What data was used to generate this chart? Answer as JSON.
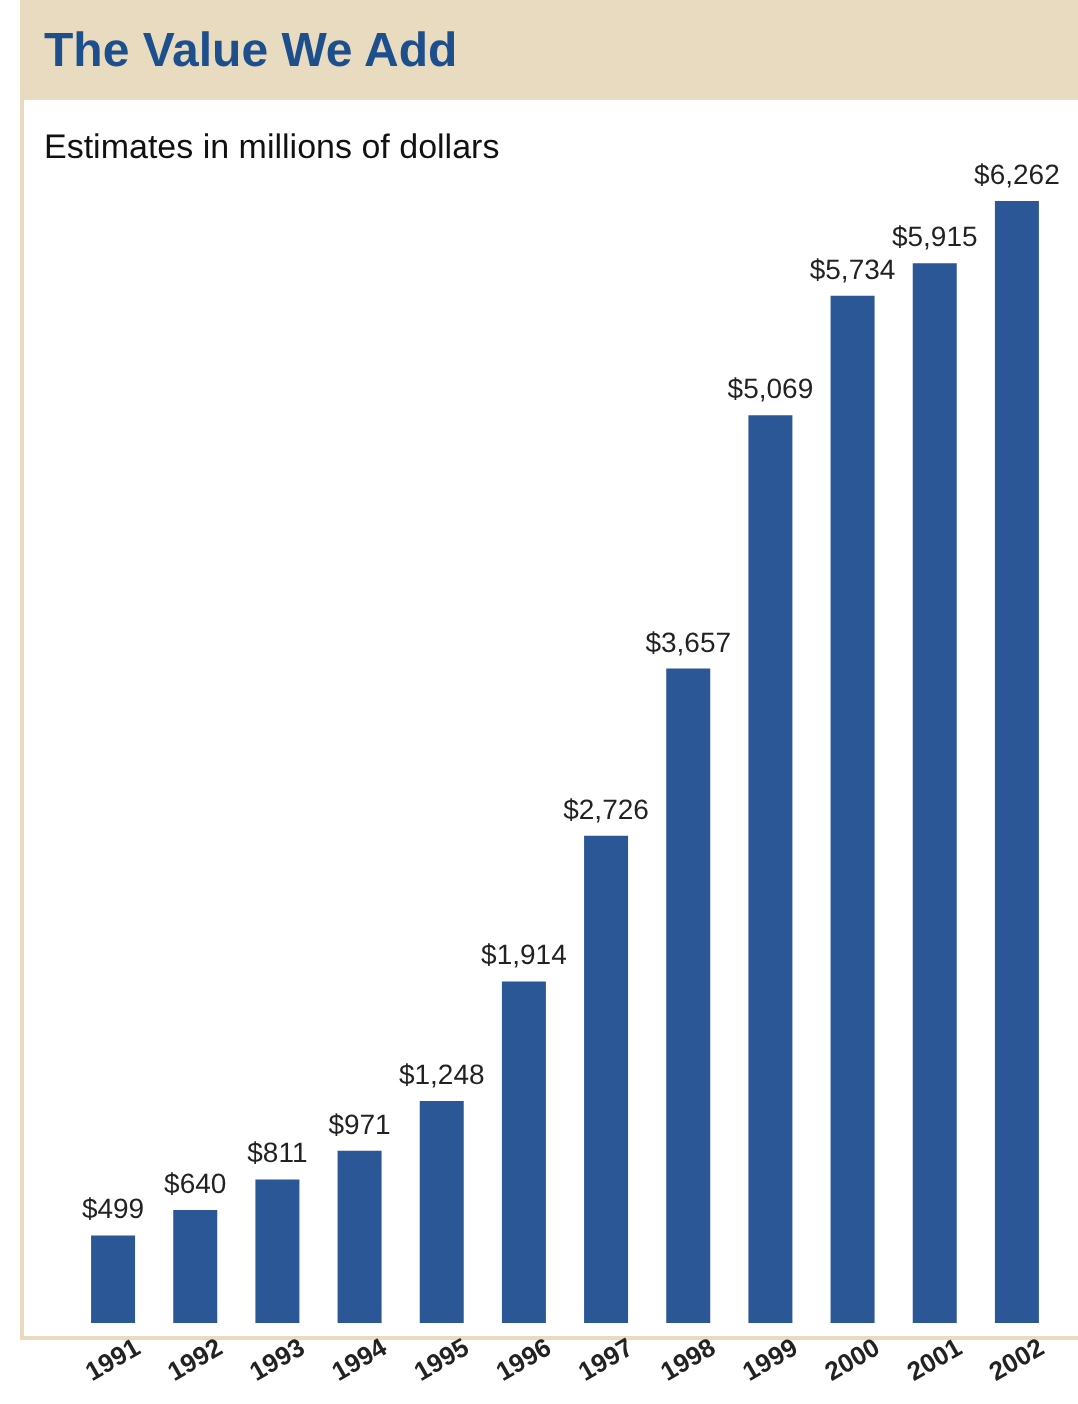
{
  "chart_data": {
    "type": "bar",
    "title": "The Value We Add",
    "subtitle": "Estimates in millions of dollars",
    "categories": [
      "1991",
      "1992",
      "1993",
      "1994",
      "1995",
      "1996",
      "1997",
      "1998",
      "1999",
      "2000",
      "2001",
      "2002"
    ],
    "values": [
      499,
      640,
      811,
      971,
      1248,
      1914,
      2726,
      3657,
      5069,
      5734,
      5915,
      6262
    ],
    "value_labels": [
      "$499",
      "$640",
      "$811",
      "$971",
      "$1,248",
      "$1,914",
      "$2,726",
      "$3,657",
      "$5,069",
      "$5,734",
      "$5,915",
      "$6,262"
    ],
    "color": "#2b5797"
  }
}
